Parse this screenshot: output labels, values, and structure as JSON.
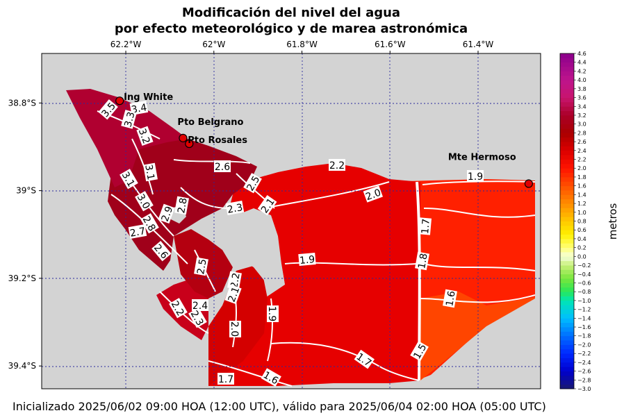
{
  "title_line1": "Modificación del nivel del agua",
  "title_line2": "por efecto meteorológico y de marea astronómica",
  "footer": "Inicializado 2025/06/02 09:00 HOA (12:00 UTC), válido para 2025/06/04 02:00 HOA (05:00 UTC)",
  "map": {
    "lon_ticks": [
      {
        "value": -62.2,
        "label": "62.2°W"
      },
      {
        "value": -62.0,
        "label": "62°W"
      },
      {
        "value": -61.8,
        "label": "61.8°W"
      },
      {
        "value": -61.6,
        "label": "61.6°W"
      },
      {
        "value": -61.4,
        "label": "61.4°W"
      }
    ],
    "lat_ticks": [
      {
        "value": -38.8,
        "label": "38.8°S"
      },
      {
        "value": -39.0,
        "label": "39°S"
      },
      {
        "value": -39.2,
        "label": "39.2°S"
      },
      {
        "value": -39.4,
        "label": "39.4°S"
      }
    ],
    "gridlines": true,
    "land_color": "#d3d3d3",
    "places": [
      {
        "name": "Ing White",
        "lon": -62.214,
        "lat": -38.795
      },
      {
        "name": "Pto Belgrano",
        "lon": -62.07,
        "lat": -38.88
      },
      {
        "name": "Pto Rosales",
        "lon": -62.056,
        "lat": -38.893
      },
      {
        "name": "Mte Hermoso",
        "lon": -61.285,
        "lat": -38.984
      }
    ],
    "contour_labels": [
      "3.5",
      "3.4",
      "3.3",
      "3.2",
      "3.1",
      "3.1",
      "3.0",
      "2.9",
      "2.8",
      "2.8",
      "2.7",
      "2.6",
      "2.6",
      "2.5",
      "2.5",
      "2.4",
      "2.3",
      "2.3",
      "2.2",
      "2.2",
      "2.2",
      "2.1",
      "2.1",
      "2.0",
      "2.0",
      "1.9",
      "1.9",
      "1.9",
      "1.8",
      "1.7",
      "1.7",
      "1.7",
      "1.6",
      "1.6",
      "1.5"
    ]
  },
  "colorbar": {
    "label": "metros",
    "min": -3.0,
    "max": 4.6,
    "step": 0.1,
    "tick_labels": [
      "4.6",
      "4.4",
      "4.2",
      "4.0",
      "3.8",
      "3.6",
      "3.4",
      "3.2",
      "3.0",
      "2.8",
      "2.6",
      "2.4",
      "2.2",
      "2.0",
      "1.8",
      "1.6",
      "1.4",
      "1.2",
      "1.0",
      "0.8",
      "0.6",
      "0.4",
      "0.2",
      "0.0",
      "−0.2",
      "−0.4",
      "−0.6",
      "−0.8",
      "−1.0",
      "−1.2",
      "−1.4",
      "−1.6",
      "−1.8",
      "−2.0",
      "−2.2",
      "−2.4",
      "−2.6",
      "−2.8",
      "−3.0"
    ]
  }
}
